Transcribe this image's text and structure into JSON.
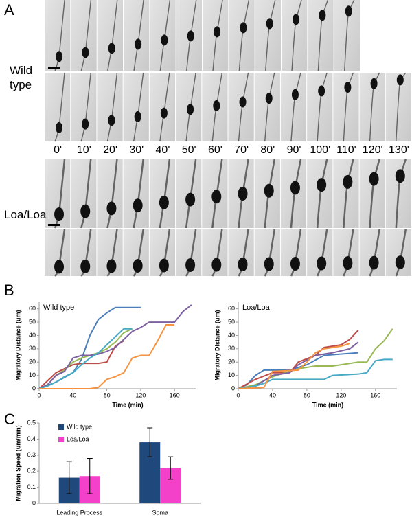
{
  "panel_a": {
    "label": "A",
    "groups": [
      "Wild type",
      "Loa/Loa"
    ],
    "times": [
      "0'",
      "10'",
      "20'",
      "30'",
      "40'",
      "50'",
      "60'",
      "70'",
      "80'",
      "90'",
      "100'",
      "110'",
      "120'",
      "130'"
    ]
  },
  "panel_b_label": "B",
  "panel_c_label": "C",
  "chart_data": [
    {
      "type": "line",
      "title": "Wild type",
      "x_label": "Time (min)",
      "y_label": "Migratory Distance (um)",
      "xlim": [
        0,
        185
      ],
      "xticks": [
        0,
        40,
        80,
        120,
        160
      ],
      "ylim": [
        0,
        65
      ],
      "yticks": [
        0,
        10,
        20,
        30,
        40,
        50,
        60
      ],
      "series": [
        {
          "color": "#4a7ebb",
          "x": [
            0,
            20,
            40,
            50,
            60,
            70,
            80,
            90,
            100,
            120
          ],
          "values": [
            0,
            5,
            12,
            22,
            40,
            52,
            57,
            61,
            61,
            61
          ]
        },
        {
          "color": "#be4b48",
          "x": [
            0,
            10,
            20,
            40,
            50,
            70,
            80,
            90,
            100
          ],
          "values": [
            0,
            6,
            12,
            18,
            19,
            19,
            20,
            32,
            36
          ]
        },
        {
          "color": "#98b954",
          "x": [
            0,
            10,
            20,
            30,
            40,
            50,
            60,
            70,
            80,
            90,
            100,
            110
          ],
          "values": [
            0,
            3,
            10,
            14,
            20,
            23,
            25,
            27,
            30,
            35,
            42,
            45
          ]
        },
        {
          "color": "#7d60a0",
          "x": [
            0,
            10,
            20,
            30,
            40,
            50,
            60,
            70,
            80,
            90,
            100,
            110,
            120,
            130,
            160,
            170,
            180
          ],
          "values": [
            0,
            3,
            10,
            13,
            23,
            25,
            25,
            26,
            28,
            31,
            37,
            43,
            46,
            50,
            50,
            58,
            63
          ]
        },
        {
          "color": "#46aac5",
          "x": [
            0,
            10,
            20,
            30,
            40,
            50,
            60,
            70,
            80,
            90,
            100,
            110
          ],
          "values": [
            0,
            2,
            5,
            9,
            12,
            18,
            23,
            27,
            33,
            39,
            45,
            45
          ]
        },
        {
          "color": "#f69240",
          "x": [
            0,
            60,
            70,
            80,
            90,
            100,
            110,
            120,
            130,
            140,
            150,
            160
          ],
          "values": [
            0,
            0,
            1,
            7,
            9,
            12,
            23,
            25,
            25,
            36,
            48,
            48
          ]
        }
      ]
    },
    {
      "type": "line",
      "title": "Loa/Loa",
      "x_label": "Time (min)",
      "y_label": "Migratory Distance (um)",
      "xlim": [
        0,
        185
      ],
      "xticks": [
        0,
        40,
        80,
        120,
        160
      ],
      "ylim": [
        0,
        65
      ],
      "yticks": [
        0,
        10,
        20,
        30,
        40,
        50,
        60
      ],
      "series": [
        {
          "color": "#4a7ebb",
          "x": [
            0,
            10,
            20,
            30,
            60,
            80,
            100,
            140
          ],
          "values": [
            0,
            3,
            10,
            14,
            14,
            18,
            25,
            27
          ]
        },
        {
          "color": "#be4b48",
          "x": [
            0,
            20,
            40,
            60,
            70,
            90,
            100,
            120,
            130,
            140
          ],
          "values": [
            0,
            7,
            12,
            12,
            20,
            25,
            31,
            33,
            37,
            44
          ]
        },
        {
          "color": "#98b954",
          "x": [
            0,
            20,
            40,
            70,
            90,
            110,
            140,
            150,
            160,
            170,
            180
          ],
          "values": [
            0,
            3,
            9,
            15,
            17,
            17,
            20,
            20,
            30,
            36,
            45
          ]
        },
        {
          "color": "#7d60a0",
          "x": [
            0,
            20,
            40,
            60,
            70,
            90,
            110,
            130,
            140
          ],
          "values": [
            0,
            2,
            10,
            12,
            18,
            25,
            27,
            30,
            35
          ]
        },
        {
          "color": "#46aac5",
          "x": [
            0,
            20,
            30,
            40,
            100,
            110,
            140,
            150,
            160,
            170,
            180
          ],
          "values": [
            0,
            2,
            4,
            7,
            7,
            10,
            11,
            12,
            21,
            22,
            22
          ]
        },
        {
          "color": "#f69240",
          "x": [
            0,
            30,
            40,
            70,
            80,
            90,
            100,
            120,
            130
          ],
          "values": [
            0,
            1,
            13,
            14,
            20,
            27,
            30,
            32,
            34
          ]
        }
      ]
    },
    {
      "type": "bar",
      "y_label": "Migration Speed (um/min)",
      "categories": [
        "Leading Process",
        "Soma"
      ],
      "ylim": [
        0,
        0.5
      ],
      "yticks": [
        0,
        0.1,
        0.2,
        0.3,
        0.4,
        0.5
      ],
      "legend": "top-left",
      "series": [
        {
          "name": "Wild type",
          "color": "#1f497d",
          "values": [
            0.16,
            0.38
          ],
          "errors": [
            0.1,
            0.09
          ]
        },
        {
          "name": "Loa/Loa",
          "color": "#f342c9",
          "values": [
            0.17,
            0.22
          ],
          "errors": [
            0.11,
            0.07
          ]
        }
      ]
    }
  ]
}
